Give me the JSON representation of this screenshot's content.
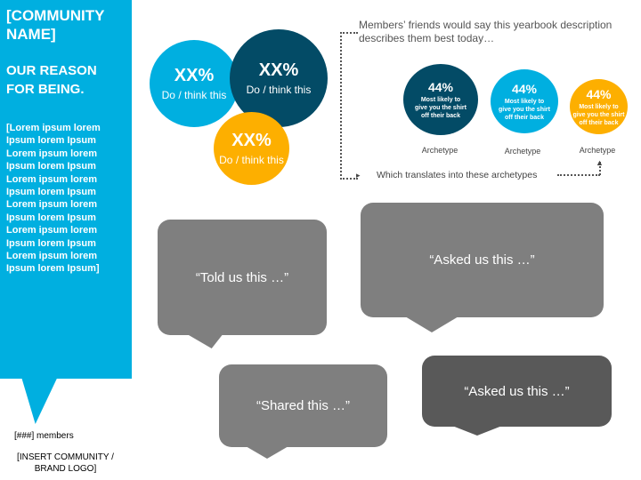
{
  "sidebar": {
    "title": "[COMMUNITY NAME]",
    "subtitle": "OUR REASON FOR BEING.",
    "body": "[Lorem ipsum lorem Ipsum lorem Ipsum Lorem ipsum lorem Ipsum lorem Ipsum Lorem ipsum lorem Ipsum lorem Ipsum Lorem ipsum lorem Ipsum lorem Ipsum Lorem ipsum lorem Ipsum lorem Ipsum Lorem ipsum lorem Ipsum lorem Ipsum]"
  },
  "members": "[###] members",
  "logo": "[INSERT COMMUNITY / BRAND LOGO]",
  "stats": [
    {
      "value": "XX%",
      "label": "Do / think this",
      "color": "#00afe0"
    },
    {
      "value": "XX%",
      "label": "Do / think this",
      "color": "#034b66"
    },
    {
      "value": "XX%",
      "label": "Do / think this",
      "color": "#fdaf00"
    }
  ],
  "archetypes": {
    "heading": "Members’ friends would say this yearbook description describes them best today…",
    "footer": "Which translates into these archetypes",
    "items": [
      {
        "pct": "44%",
        "desc": "Most likely to give you the shirt off their back",
        "label": "Archetype",
        "color": "#034b66"
      },
      {
        "pct": "44%",
        "desc": "Most likely to give you the shirt off their back",
        "label": "Archetype",
        "color": "#00afe0"
      },
      {
        "pct": "44%",
        "desc": "Most likely to give you the shirt off their back",
        "label": "Archetype",
        "color": "#fdaf00"
      }
    ]
  },
  "quotes": [
    "“Told us this …”",
    "“Asked us this …”",
    "“Shared this …”",
    "“Asked us this …”"
  ]
}
